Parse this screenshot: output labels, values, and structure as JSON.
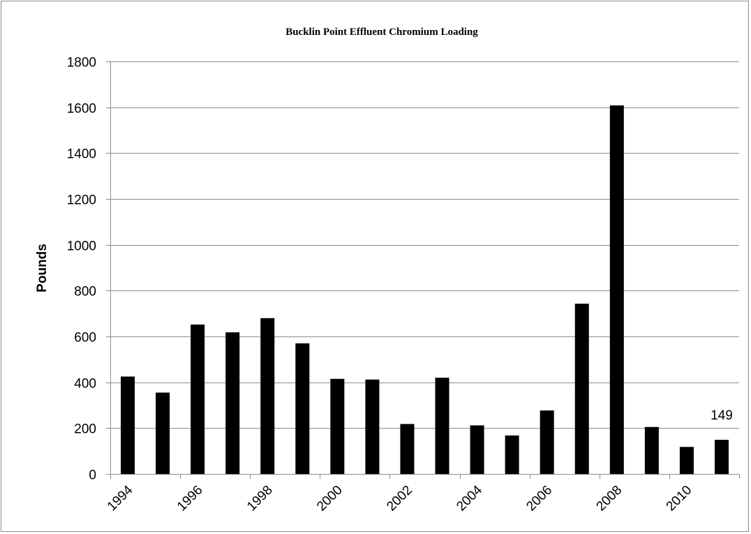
{
  "chart_data": {
    "type": "bar",
    "title": "Bucklin Point Effluent Chromium Loading",
    "xlabel": "",
    "ylabel": "Pounds",
    "categories": [
      "1994",
      "1995",
      "1996",
      "1997",
      "1998",
      "1999",
      "2000",
      "2001",
      "2002",
      "2003",
      "2004",
      "2005",
      "2006",
      "2007",
      "2008",
      "2009",
      "2010",
      "2011"
    ],
    "x_tick_labels": [
      "1994",
      "1996",
      "1998",
      "2000",
      "2002",
      "2004",
      "2006",
      "2008",
      "2010"
    ],
    "values": [
      425,
      355,
      652,
      618,
      680,
      570,
      415,
      412,
      218,
      420,
      212,
      168,
      277,
      743,
      1608,
      205,
      118,
      149
    ],
    "ylim": [
      0,
      1800
    ],
    "y_ticks": [
      0,
      200,
      400,
      600,
      800,
      1000,
      1200,
      1400,
      1600,
      1800
    ],
    "data_labels": [
      {
        "category": "2011",
        "text": "149"
      }
    ],
    "bar_color": "#000000",
    "grid": true,
    "legend": "none"
  }
}
